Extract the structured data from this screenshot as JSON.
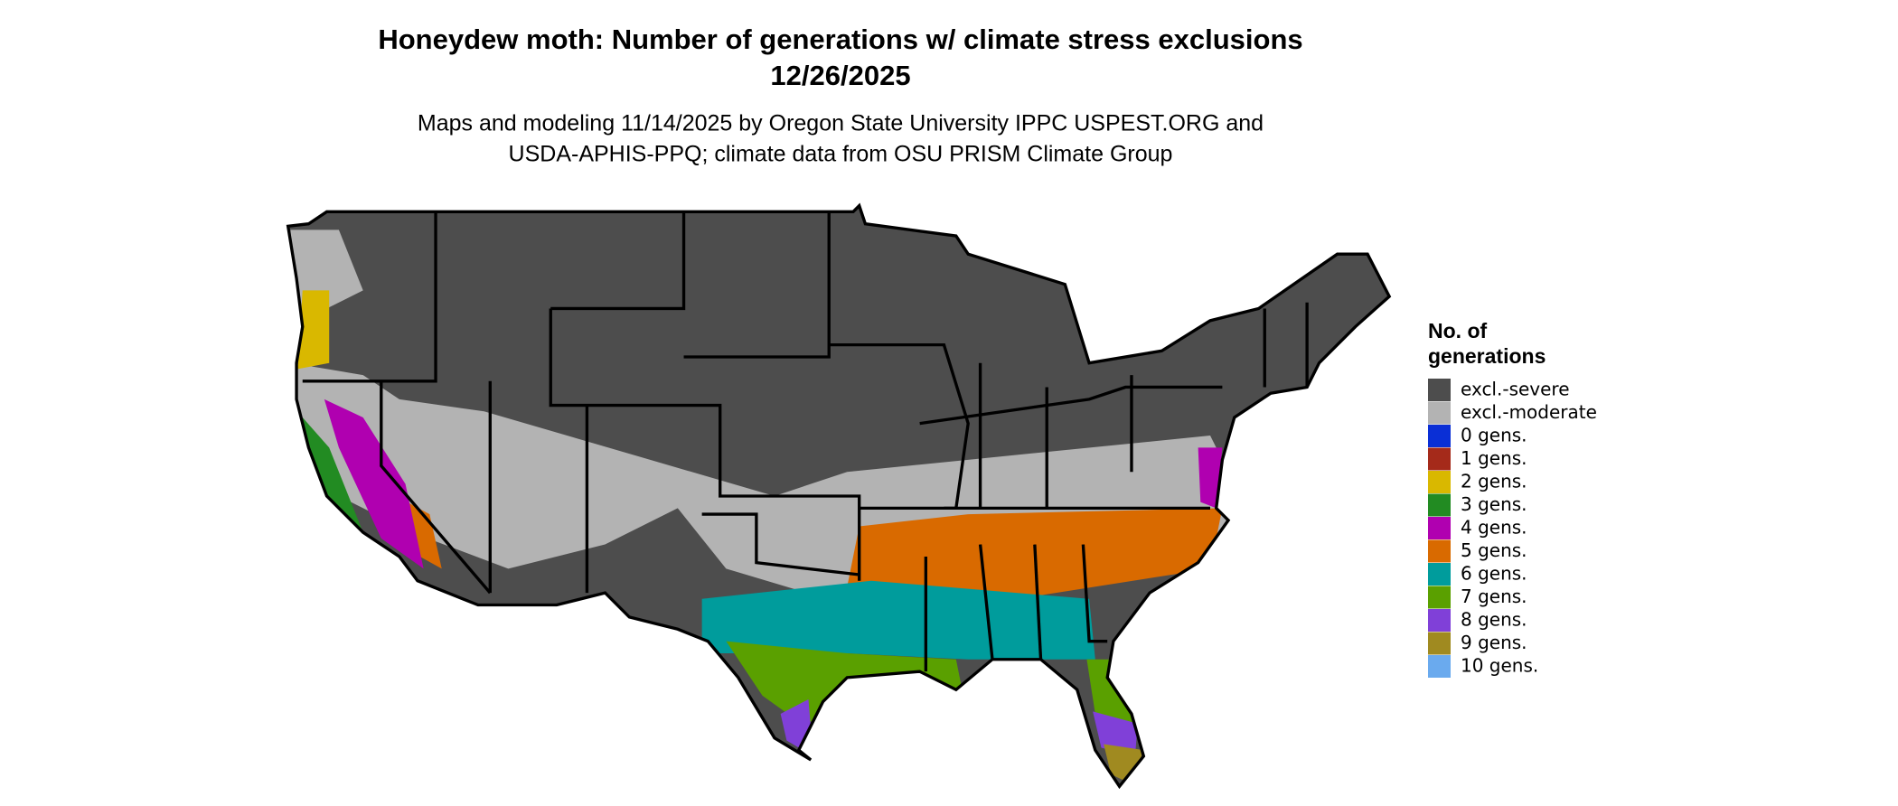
{
  "header": {
    "title": "Honeydew moth: Number of generations w/ climate stress exclusions",
    "date": "12/26/2025",
    "subtitle_lines": [
      "Maps and modeling 11/14/2025 by Oregon State University IPPC USPEST.ORG and",
      "USDA-APHIS-PPQ; climate data from OSU PRISM Climate Group"
    ]
  },
  "legend": {
    "title_lines": [
      "No. of",
      "generations"
    ],
    "items": [
      {
        "label": "excl.-severe",
        "color": "#4d4d4d"
      },
      {
        "label": "excl.-moderate",
        "color": "#b3b3b3"
      },
      {
        "label": "0 gens.",
        "color": "#0a2fd6"
      },
      {
        "label": "1 gens.",
        "color": "#a52a1a"
      },
      {
        "label": "2 gens.",
        "color": "#d9b800"
      },
      {
        "label": "3 gens.",
        "color": "#228b22"
      },
      {
        "label": "4 gens.",
        "color": "#b000b0"
      },
      {
        "label": "5 gens.",
        "color": "#d96a00"
      },
      {
        "label": "6 gens.",
        "color": "#009c9c"
      },
      {
        "label": "7 gens.",
        "color": "#5aa000"
      },
      {
        "label": "8 gens.",
        "color": "#8040d8"
      },
      {
        "label": "9 gens.",
        "color": "#a08a20"
      },
      {
        "label": "10 gens.",
        "color": "#6aaaee"
      }
    ]
  }
}
